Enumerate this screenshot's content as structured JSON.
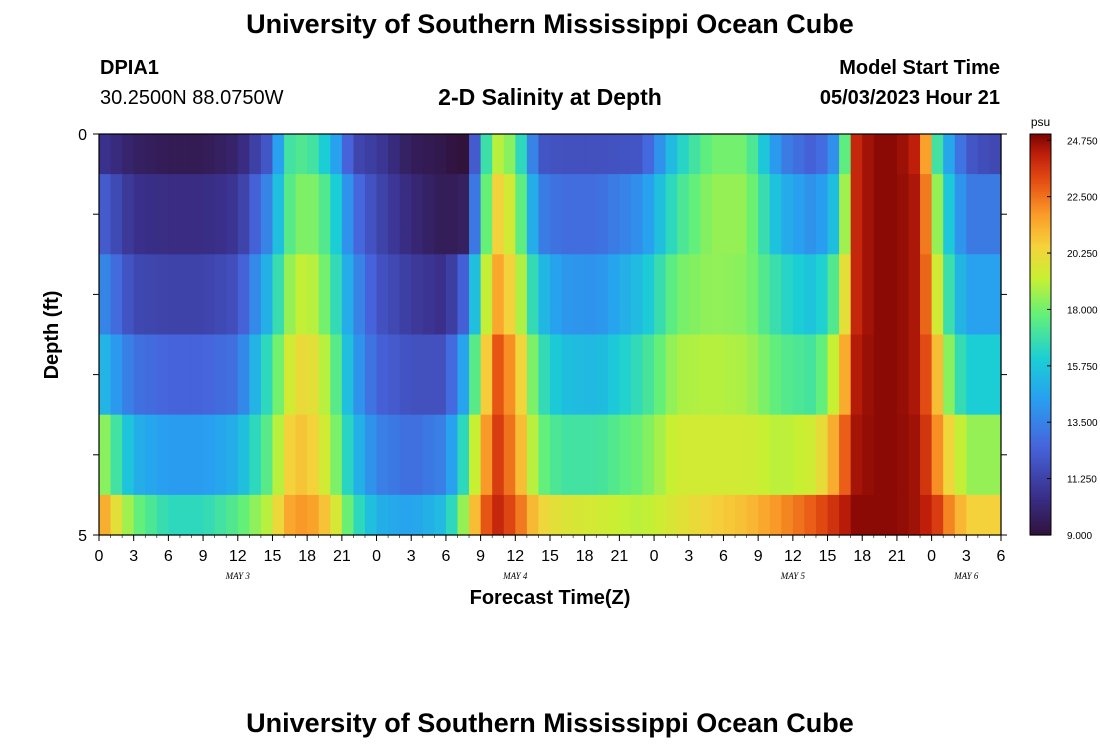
{
  "page": {
    "title_top": "University of Southern Mississippi Ocean Cube",
    "title_bottom": "University of Southern Mississippi Ocean Cube",
    "station_id": "DPIA1",
    "station_coords": "30.2500N  88.0750W",
    "model_start_label": "Model Start Time",
    "model_start_value": "05/03/2023 Hour 21"
  },
  "chart_data": {
    "type": "heatmap",
    "title": "2-D Salinity at Depth",
    "xlabel": "Forecast Time(Z)",
    "ylabel": "Depth (ft)",
    "ylim": [
      0,
      5
    ],
    "y_tick_labels": [
      "0",
      "5"
    ],
    "y_minor_ticks": 4,
    "x_start_hour": 0,
    "x_end_hour": 78,
    "x_tick_step_hours": 3,
    "x_tick_labels": [
      "0",
      "3",
      "6",
      "9",
      "12",
      "15",
      "18",
      "21",
      "0",
      "3",
      "6",
      "9",
      "12",
      "15",
      "18",
      "21",
      "0",
      "3",
      "6",
      "9",
      "12",
      "15",
      "18",
      "21",
      "0",
      "3",
      "6"
    ],
    "day_labels": [
      {
        "label": "MAY 3",
        "hour": 12
      },
      {
        "label": "MAY 4",
        "hour": 36
      },
      {
        "label": "MAY 5",
        "hour": 60
      },
      {
        "label": "MAY 6",
        "hour": 75
      }
    ],
    "colorbar": {
      "unit": "psu",
      "min": 9.0,
      "max": 25.0,
      "tick_labels": [
        "24.750",
        "22.500",
        "20.250",
        "18.000",
        "15.750",
        "13.500",
        "11.250",
        "9.000"
      ]
    },
    "depth_layers": 5,
    "salinity_keyframes": {
      "hours": [
        0,
        3,
        6,
        9,
        12,
        14.5,
        16.5,
        18,
        20,
        22,
        24,
        27,
        30,
        32,
        33,
        34.5,
        36,
        38,
        40,
        43,
        47,
        50,
        53,
        56,
        59,
        62,
        64,
        65.5,
        67,
        69,
        71,
        72.5,
        74,
        75.5,
        77,
        78
      ],
      "layers": [
        [
          10.8,
          9.8,
          9.5,
          9.5,
          10.0,
          12.0,
          17.0,
          17.5,
          15.5,
          11.5,
          11.0,
          9.6,
          9.3,
          8.6,
          15.8,
          19.0,
          18.0,
          12.0,
          11.8,
          11.8,
          12.0,
          16.0,
          18.0,
          18.0,
          13.5,
          12.2,
          14.5,
          24.0,
          24.8,
          24.8,
          24.0,
          17.0,
          13.5,
          12.0,
          11.5,
          11.5
        ],
        [
          12.5,
          10.6,
          10.4,
          10.4,
          10.8,
          13.5,
          17.5,
          18.5,
          17.0,
          13.0,
          11.5,
          10.2,
          9.5,
          9.8,
          16.5,
          20.5,
          19.0,
          13.5,
          12.8,
          12.8,
          14.0,
          17.0,
          18.5,
          18.5,
          15.0,
          13.8,
          16.0,
          24.0,
          24.8,
          24.8,
          24.3,
          18.5,
          14.5,
          13.2,
          13.2,
          13.2
        ],
        [
          14.0,
          11.5,
          11.3,
          11.3,
          11.8,
          15.0,
          18.5,
          19.5,
          17.5,
          14.0,
          12.0,
          11.0,
          10.5,
          13.0,
          18.0,
          21.5,
          20.0,
          15.5,
          14.2,
          14.0,
          15.5,
          18.0,
          18.5,
          18.3,
          16.5,
          15.5,
          18.0,
          24.0,
          24.8,
          24.8,
          24.3,
          19.5,
          15.5,
          14.5,
          14.5,
          14.5
        ],
        [
          15.5,
          13.0,
          12.5,
          12.5,
          13.0,
          16.5,
          19.5,
          20.5,
          18.5,
          14.5,
          12.5,
          11.8,
          11.8,
          15.5,
          19.5,
          23.0,
          21.5,
          17.0,
          15.5,
          15.2,
          16.8,
          18.8,
          19.0,
          18.8,
          17.5,
          17.0,
          20.0,
          24.3,
          24.8,
          24.8,
          24.3,
          21.0,
          17.0,
          16.0,
          16.0,
          16.0
        ],
        [
          19.0,
          15.0,
          14.3,
          14.3,
          15.0,
          17.5,
          20.5,
          21.0,
          19.0,
          15.5,
          13.5,
          12.8,
          13.5,
          17.5,
          21.0,
          23.5,
          22.0,
          18.0,
          17.0,
          17.0,
          18.0,
          19.5,
          19.5,
          19.5,
          19.0,
          19.5,
          22.0,
          24.5,
          24.8,
          24.8,
          24.5,
          22.0,
          19.5,
          18.5,
          18.5,
          18.5
        ],
        [
          22.0,
          18.0,
          16.5,
          16.5,
          17.5,
          19.0,
          21.5,
          22.0,
          20.5,
          17.0,
          15.0,
          14.5,
          15.5,
          19.5,
          22.5,
          24.0,
          23.0,
          20.5,
          19.8,
          19.5,
          19.0,
          19.8,
          20.5,
          21.0,
          22.0,
          23.0,
          24.0,
          24.8,
          24.8,
          24.8,
          24.5,
          23.5,
          21.5,
          20.5,
          20.5,
          20.5
        ]
      ]
    }
  }
}
